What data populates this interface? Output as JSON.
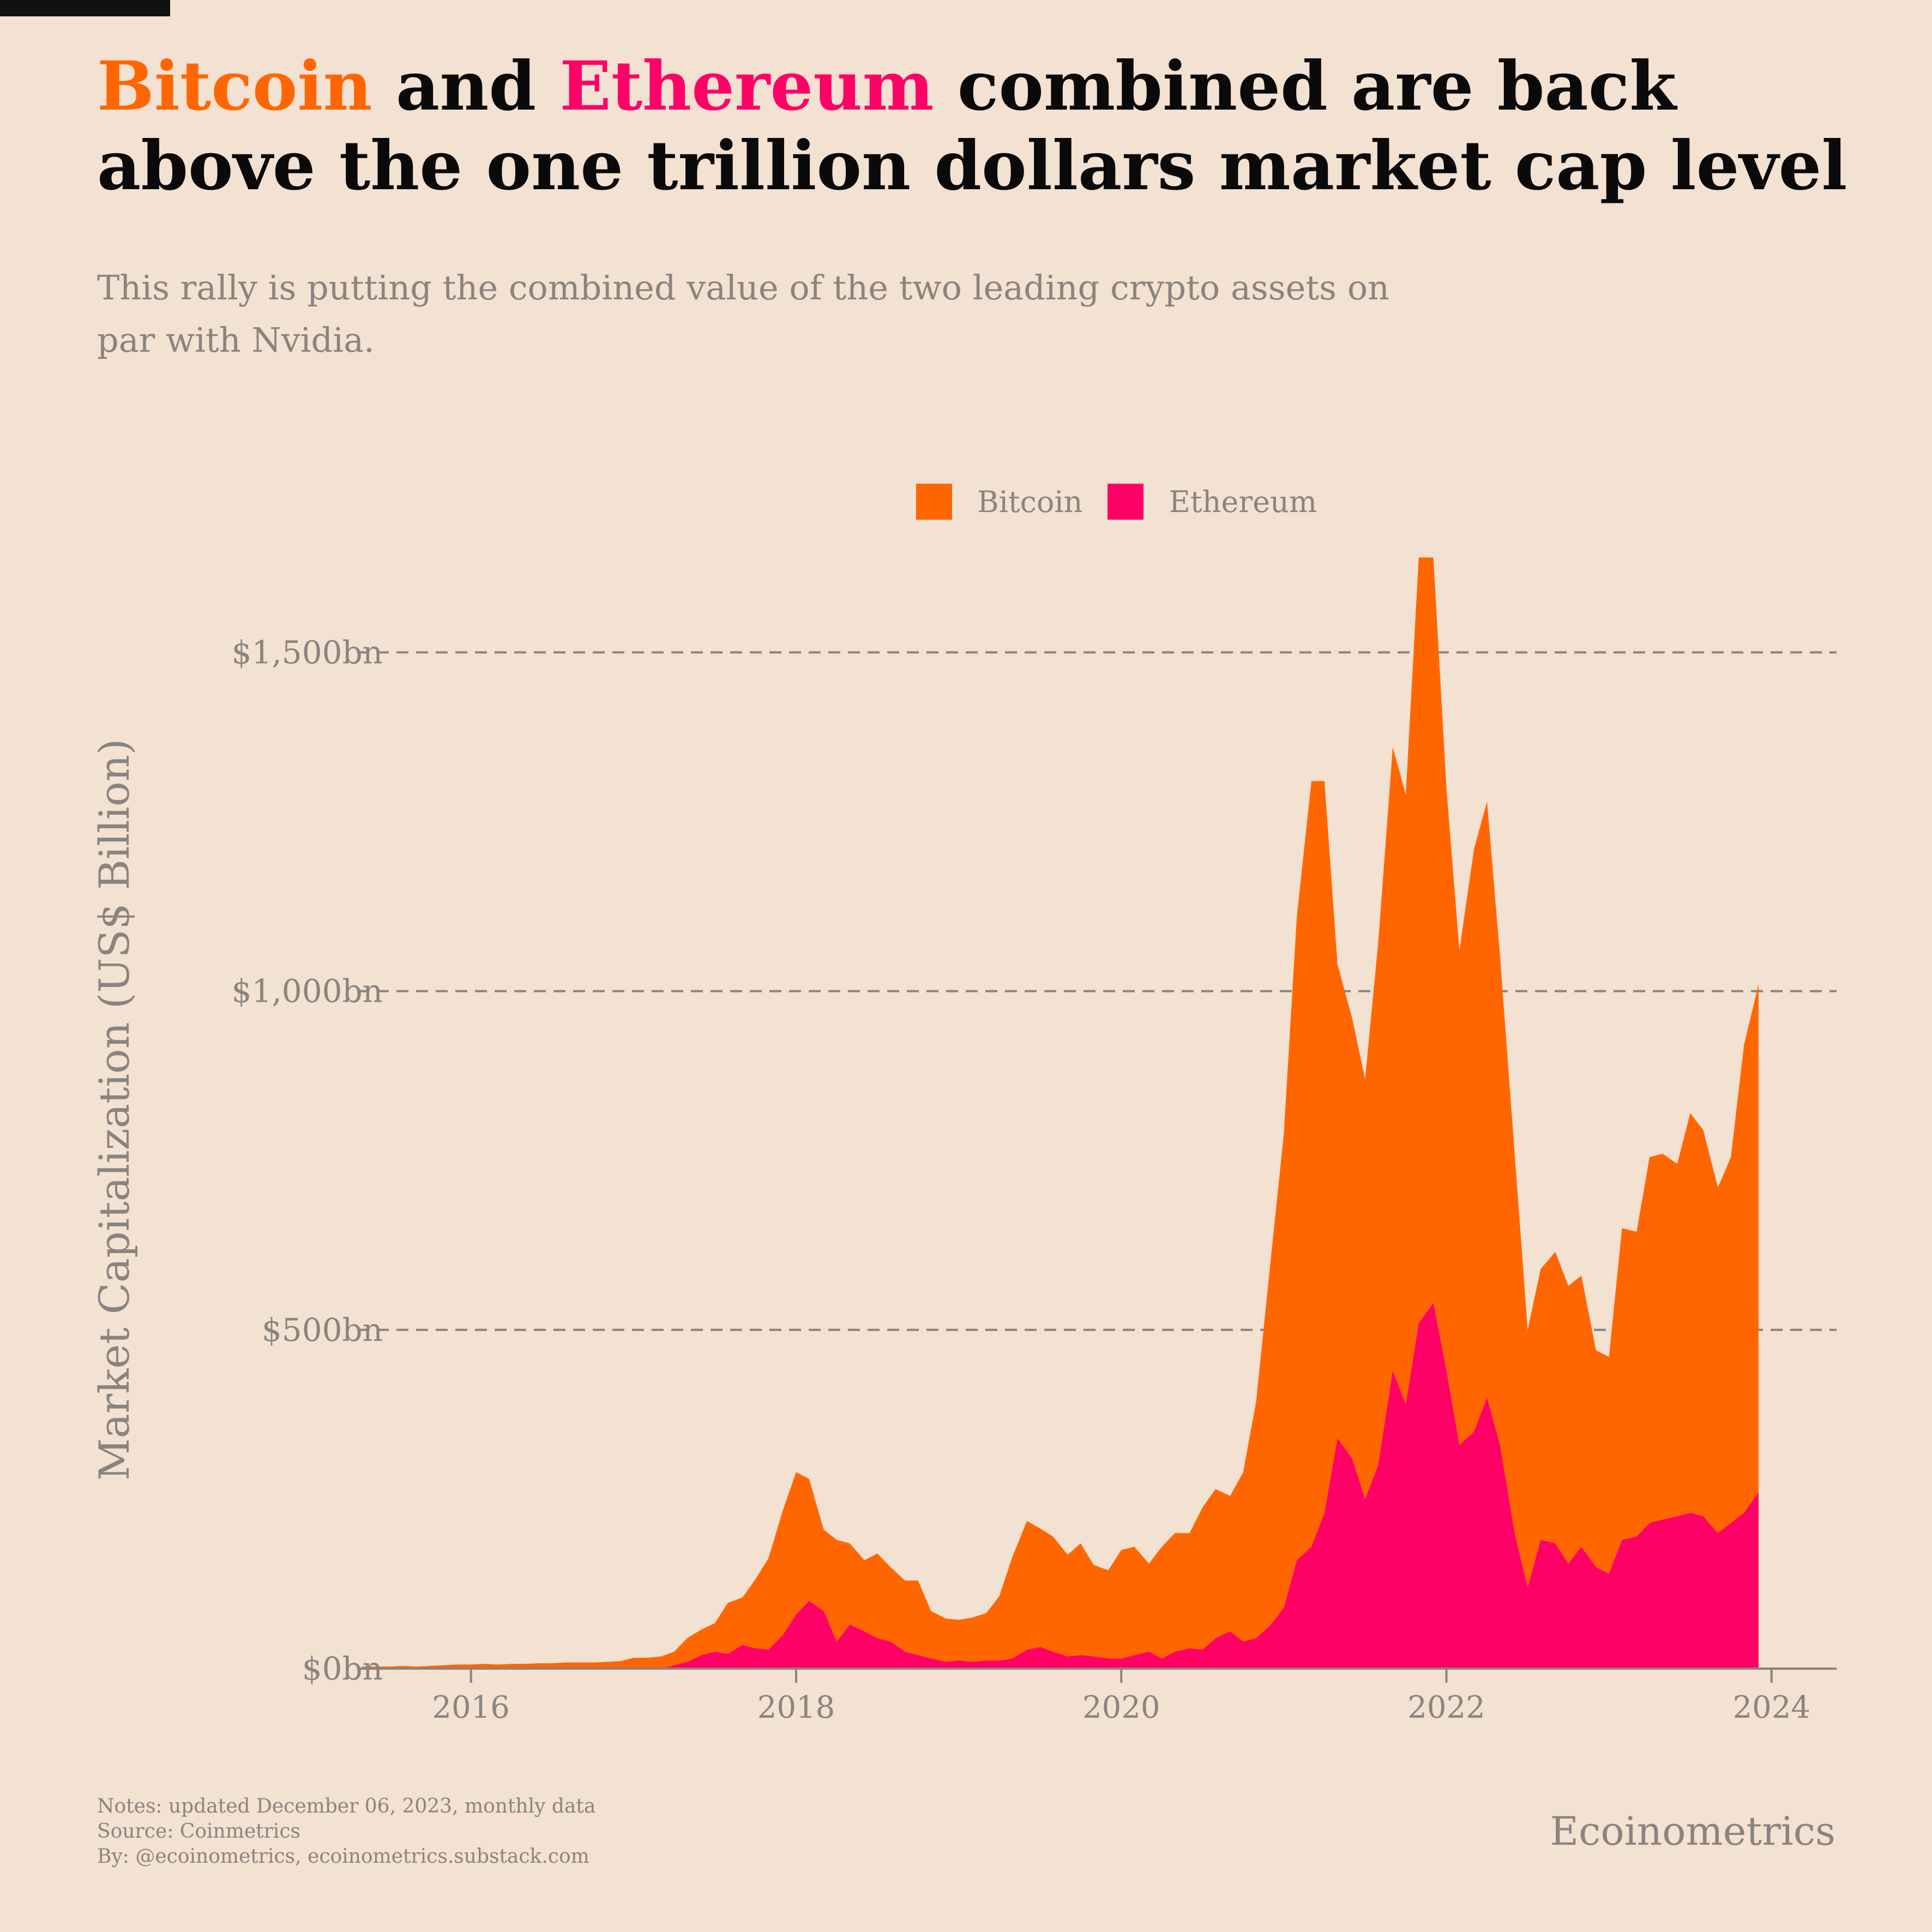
{
  "title": {
    "part1": "Bitcoin",
    "part2": " and ",
    "part3": "Ethereum",
    "part4": " combined are back above the one trillion dollars market cap level"
  },
  "subtitle": "This rally is putting the combined value of the two leading crypto assets on par with Nvidia.",
  "legend": {
    "bitcoin": "Bitcoin",
    "ethereum": "Ethereum"
  },
  "notes": {
    "line1": "Notes: updated December 06, 2023, monthly data",
    "line2": "Source: Coinmetrics",
    "line3": "By: @ecoinometrics, ecoinometrics.substack.com"
  },
  "brand": "Ecoinometrics",
  "colors": {
    "bitcoin": "#ff6600",
    "ethereum": "#ff0066",
    "background": "#f3e1d1",
    "grid": "#8a8480",
    "text_muted": "#8a8480"
  },
  "chart_data": {
    "type": "area",
    "stacked": true,
    "ylabel": "Market Capitalization (US$ Billion)",
    "xlabel": "",
    "ylim": [
      0,
      1650
    ],
    "xlim": [
      2015.3,
      2024.4
    ],
    "yticks": [
      0,
      500,
      1000,
      1500
    ],
    "ytick_labels": [
      "$0bn",
      "$500bn",
      "$1,000bn",
      "$1,500bn"
    ],
    "xticks": [
      2016,
      2018,
      2020,
      2022,
      2024
    ],
    "xtick_labels": [
      "2016",
      "2018",
      "2020",
      "2022",
      "2024"
    ],
    "grid": "horizontal dashed",
    "legend_position": "top-center",
    "x": [
      2015.33,
      2015.42,
      2015.5,
      2015.58,
      2015.67,
      2015.75,
      2015.83,
      2015.92,
      2016.0,
      2016.08,
      2016.17,
      2016.25,
      2016.33,
      2016.42,
      2016.5,
      2016.58,
      2016.67,
      2016.75,
      2016.83,
      2016.92,
      2017.0,
      2017.08,
      2017.17,
      2017.25,
      2017.33,
      2017.42,
      2017.5,
      2017.58,
      2017.67,
      2017.75,
      2017.83,
      2017.92,
      2018.0,
      2018.08,
      2018.17,
      2018.25,
      2018.33,
      2018.42,
      2018.5,
      2018.58,
      2018.67,
      2018.75,
      2018.83,
      2018.92,
      2019.0,
      2019.08,
      2019.17,
      2019.25,
      2019.33,
      2019.42,
      2019.5,
      2019.58,
      2019.67,
      2019.75,
      2019.83,
      2019.92,
      2020.0,
      2020.08,
      2020.17,
      2020.25,
      2020.33,
      2020.42,
      2020.5,
      2020.58,
      2020.67,
      2020.75,
      2020.83,
      2020.92,
      2021.0,
      2021.08,
      2021.17,
      2021.25,
      2021.33,
      2021.42,
      2021.5,
      2021.58,
      2021.67,
      2021.75,
      2021.83,
      2021.92,
      2022.0,
      2022.08,
      2022.17,
      2022.25,
      2022.33,
      2022.42,
      2022.5,
      2022.58,
      2022.67,
      2022.75,
      2022.83,
      2022.92,
      2023.0,
      2023.08,
      2023.17,
      2023.25,
      2023.33,
      2023.42,
      2023.5,
      2023.58,
      2023.67,
      2023.75,
      2023.83,
      2023.92
    ],
    "series": [
      {
        "name": "Bitcoin",
        "values": [
          3,
          3,
          3,
          4,
          3,
          4,
          5,
          6,
          6,
          7,
          6,
          7,
          7,
          8,
          8,
          9,
          9,
          9,
          10,
          11,
          16,
          16,
          18,
          20,
          35,
          38,
          42,
          75,
          70,
          102,
          135,
          185,
          210,
          180,
          120,
          150,
          120,
          105,
          125,
          110,
          105,
          110,
          70,
          64,
          60,
          65,
          70,
          95,
          150,
          190,
          175,
          170,
          150,
          165,
          135,
          130,
          160,
          160,
          130,
          165,
          175,
          170,
          210,
          220,
          200,
          250,
          350,
          540,
          700,
          950,
          1130,
          1080,
          700,
          650,
          620,
          770,
          920,
          900,
          1130,
          1100,
          860,
          730,
          860,
          880,
          720,
          560,
          380,
          400,
          430,
          410,
          400,
          320,
          320,
          460,
          450,
          540,
          540,
          520,
          590,
          570,
          510,
          540,
          690,
          750
        ]
      },
      {
        "name": "Ethereum",
        "values": [
          0,
          0,
          0,
          0,
          0,
          0,
          0,
          0,
          0,
          0,
          0,
          0,
          0,
          0,
          0,
          0,
          0,
          0,
          0,
          0,
          0,
          0,
          0,
          5,
          10,
          20,
          25,
          22,
          35,
          30,
          28,
          50,
          80,
          100,
          85,
          40,
          65,
          55,
          45,
          40,
          25,
          20,
          15,
          10,
          12,
          10,
          12,
          12,
          15,
          28,
          32,
          25,
          18,
          20,
          18,
          15,
          15,
          20,
          25,
          15,
          25,
          30,
          28,
          45,
          55,
          40,
          45,
          65,
          90,
          160,
          180,
          230,
          340,
          310,
          250,
          300,
          440,
          390,
          510,
          540,
          440,
          330,
          350,
          400,
          330,
          200,
          120,
          190,
          185,
          155,
          180,
          150,
          140,
          190,
          195,
          215,
          220,
          225,
          230,
          225,
          200,
          215,
          230,
          260
        ]
      }
    ]
  }
}
